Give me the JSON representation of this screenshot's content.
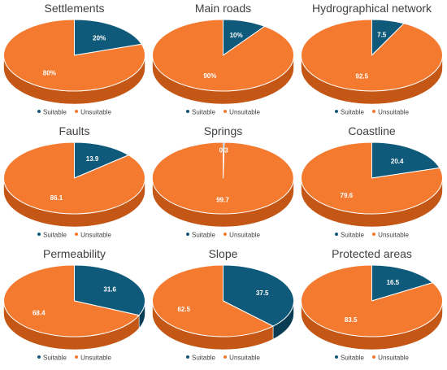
{
  "colors": {
    "suitable": "#0f5a7a",
    "suitable_side": "#0a3d54",
    "unsuitable": "#f47a30",
    "unsuitable_side": "#c45716",
    "rim": "#ffffff",
    "label_text": "#ffffff",
    "title_text": "#404040"
  },
  "legend": {
    "suitable_label": "Suitable",
    "unsuitable_label": "Unsuitable"
  },
  "chart_data": [
    {
      "type": "pie",
      "title": "Settlements",
      "labels": [
        "Suitable",
        "Unsuitable"
      ],
      "values": [
        20,
        80
      ],
      "value_labels": [
        "20%",
        "80%"
      ],
      "style": "3d",
      "legend_position": "bottom"
    },
    {
      "type": "pie",
      "title": "Main roads",
      "labels": [
        "Suitable",
        "Unsuitable"
      ],
      "values": [
        10,
        90
      ],
      "value_labels": [
        "10%",
        "90%"
      ],
      "style": "3d",
      "legend_position": "bottom"
    },
    {
      "type": "pie",
      "title": "Hydrographical network",
      "labels": [
        "Suitable",
        "Unsuitable"
      ],
      "values": [
        7.5,
        92.5
      ],
      "value_labels": [
        "7.5",
        "92.5"
      ],
      "style": "3d",
      "legend_position": "bottom"
    },
    {
      "type": "pie",
      "title": "Faults",
      "labels": [
        "Suitable",
        "Unsuitable"
      ],
      "values": [
        13.9,
        86.1
      ],
      "value_labels": [
        "13.9",
        "86.1"
      ],
      "style": "3d",
      "legend_position": "bottom"
    },
    {
      "type": "pie",
      "title": "Springs",
      "labels": [
        "Suitable",
        "Unsuitable"
      ],
      "values": [
        0.3,
        99.7
      ],
      "value_labels": [
        "0.3",
        "99.7"
      ],
      "style": "3d",
      "legend_position": "bottom"
    },
    {
      "type": "pie",
      "title": "Coastline",
      "labels": [
        "Suitable",
        "Unsuitable"
      ],
      "values": [
        20.4,
        79.6
      ],
      "value_labels": [
        "20.4",
        "79.6"
      ],
      "style": "3d",
      "legend_position": "bottom"
    },
    {
      "type": "pie",
      "title": "Permeability",
      "labels": [
        "Suitable",
        "Unsuitable"
      ],
      "values": [
        31.6,
        68.4
      ],
      "value_labels": [
        "31.6",
        "68.4"
      ],
      "style": "3d",
      "legend_position": "bottom"
    },
    {
      "type": "pie",
      "title": "Slope",
      "labels": [
        "Suitable",
        "Unsuitable"
      ],
      "values": [
        37.5,
        62.5
      ],
      "value_labels": [
        "37.5",
        "62.5"
      ],
      "style": "3d",
      "legend_position": "bottom"
    },
    {
      "type": "pie",
      "title": "Protected areas",
      "labels": [
        "Suitable",
        "Unsuitable"
      ],
      "values": [
        16.5,
        83.5
      ],
      "value_labels": [
        "16.5",
        "83.5"
      ],
      "style": "3d",
      "legend_position": "bottom"
    }
  ]
}
